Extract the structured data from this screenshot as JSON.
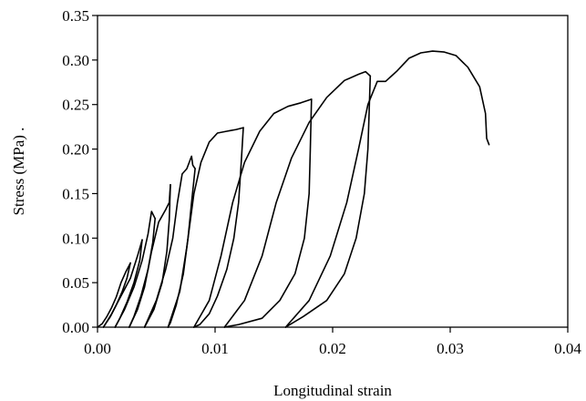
{
  "chart_data": {
    "type": "line",
    "title": "",
    "xlabel": "Longitudinal strain",
    "ylabel": "Stress (MPa) .",
    "xlim": [
      0,
      0.04
    ],
    "ylim": [
      0,
      0.35
    ],
    "x_ticks": [
      0,
      0.01,
      0.02,
      0.03,
      0.04
    ],
    "x_tick_labels": [
      "0.00",
      "0.01",
      "0.02",
      "0.03",
      "0.04"
    ],
    "y_ticks": [
      0,
      0.05,
      0.1,
      0.15,
      0.2,
      0.25,
      0.3,
      0.35
    ],
    "y_tick_labels": [
      "0.00",
      "0.05",
      "0.10",
      "0.15",
      "0.20",
      "0.25",
      "0.30",
      "0.35"
    ],
    "grid": false,
    "legend": "none",
    "line_color": "#000000",
    "series": [
      {
        "points": [
          [
            0.0,
            0.0
          ],
          [
            0.0004,
            0.004
          ],
          [
            0.0008,
            0.012
          ],
          [
            0.0012,
            0.022
          ],
          [
            0.0016,
            0.034
          ],
          [
            0.002,
            0.05
          ],
          [
            0.0024,
            0.062
          ],
          [
            0.0028,
            0.072
          ]
        ]
      },
      {
        "points": [
          [
            0.0028,
            0.072
          ],
          [
            0.0025,
            0.055
          ],
          [
            0.0021,
            0.04
          ],
          [
            0.0016,
            0.025
          ],
          [
            0.0011,
            0.012
          ],
          [
            0.0007,
            0.004
          ],
          [
            0.0005,
            0.0
          ]
        ]
      },
      {
        "points": [
          [
            0.0005,
            0.0
          ],
          [
            0.0012,
            0.015
          ],
          [
            0.002,
            0.035
          ],
          [
            0.0028,
            0.055
          ],
          [
            0.0034,
            0.08
          ],
          [
            0.0038,
            0.098
          ]
        ]
      },
      {
        "points": [
          [
            0.0038,
            0.098
          ],
          [
            0.0036,
            0.075
          ],
          [
            0.0031,
            0.05
          ],
          [
            0.0025,
            0.028
          ],
          [
            0.0019,
            0.01
          ],
          [
            0.0015,
            0.0
          ]
        ]
      },
      {
        "points": [
          [
            0.0015,
            0.0
          ],
          [
            0.0023,
            0.02
          ],
          [
            0.0031,
            0.045
          ],
          [
            0.0038,
            0.075
          ],
          [
            0.0043,
            0.105
          ],
          [
            0.0046,
            0.13
          ],
          [
            0.0049,
            0.122
          ]
        ]
      },
      {
        "points": [
          [
            0.0049,
            0.122
          ],
          [
            0.0047,
            0.095
          ],
          [
            0.0043,
            0.065
          ],
          [
            0.0037,
            0.035
          ],
          [
            0.0031,
            0.012
          ],
          [
            0.0027,
            0.0
          ]
        ]
      },
      {
        "points": [
          [
            0.0027,
            0.0
          ],
          [
            0.0034,
            0.02
          ],
          [
            0.004,
            0.045
          ],
          [
            0.0046,
            0.085
          ],
          [
            0.0052,
            0.118
          ],
          [
            0.0058,
            0.132
          ],
          [
            0.0061,
            0.14
          ],
          [
            0.0062,
            0.16
          ]
        ]
      },
      {
        "points": [
          [
            0.0062,
            0.16
          ],
          [
            0.0061,
            0.12
          ],
          [
            0.0059,
            0.085
          ],
          [
            0.0055,
            0.05
          ],
          [
            0.0048,
            0.02
          ],
          [
            0.0042,
            0.005
          ],
          [
            0.004,
            0.0
          ]
        ]
      },
      {
        "points": [
          [
            0.004,
            0.0
          ],
          [
            0.005,
            0.03
          ],
          [
            0.0058,
            0.065
          ],
          [
            0.0064,
            0.1
          ],
          [
            0.0068,
            0.14
          ],
          [
            0.0072,
            0.172
          ],
          [
            0.0076,
            0.178
          ],
          [
            0.008,
            0.192
          ],
          [
            0.0081,
            0.182
          ],
          [
            0.0083,
            0.178
          ]
        ]
      },
      {
        "points": [
          [
            0.0083,
            0.178
          ],
          [
            0.008,
            0.14
          ],
          [
            0.0077,
            0.1
          ],
          [
            0.0073,
            0.06
          ],
          [
            0.0067,
            0.025
          ],
          [
            0.0062,
            0.005
          ],
          [
            0.006,
            0.0
          ]
        ]
      },
      {
        "points": [
          [
            0.006,
            0.0
          ],
          [
            0.007,
            0.04
          ],
          [
            0.0076,
            0.09
          ],
          [
            0.0082,
            0.15
          ],
          [
            0.0088,
            0.185
          ],
          [
            0.0095,
            0.208
          ],
          [
            0.0102,
            0.218
          ],
          [
            0.011,
            0.22
          ],
          [
            0.0118,
            0.222
          ],
          [
            0.0124,
            0.224
          ]
        ]
      },
      {
        "points": [
          [
            0.0124,
            0.224
          ],
          [
            0.0122,
            0.18
          ],
          [
            0.012,
            0.14
          ],
          [
            0.0116,
            0.1
          ],
          [
            0.011,
            0.065
          ],
          [
            0.0102,
            0.035
          ],
          [
            0.0095,
            0.015
          ],
          [
            0.0087,
            0.003
          ],
          [
            0.0082,
            0.0
          ]
        ]
      },
      {
        "points": [
          [
            0.0082,
            0.0
          ],
          [
            0.0095,
            0.03
          ],
          [
            0.0105,
            0.08
          ],
          [
            0.0115,
            0.14
          ],
          [
            0.0125,
            0.185
          ],
          [
            0.0138,
            0.22
          ],
          [
            0.015,
            0.24
          ],
          [
            0.0162,
            0.248
          ],
          [
            0.0173,
            0.252
          ],
          [
            0.0182,
            0.256
          ]
        ]
      },
      {
        "points": [
          [
            0.0182,
            0.256
          ],
          [
            0.0181,
            0.2
          ],
          [
            0.018,
            0.15
          ],
          [
            0.0176,
            0.1
          ],
          [
            0.0168,
            0.06
          ],
          [
            0.0155,
            0.03
          ],
          [
            0.014,
            0.01
          ],
          [
            0.012,
            0.003
          ],
          [
            0.0108,
            0.0
          ]
        ]
      },
      {
        "points": [
          [
            0.0108,
            0.0
          ],
          [
            0.0125,
            0.03
          ],
          [
            0.014,
            0.08
          ],
          [
            0.0152,
            0.14
          ],
          [
            0.0165,
            0.19
          ],
          [
            0.018,
            0.23
          ],
          [
            0.0195,
            0.258
          ],
          [
            0.021,
            0.277
          ],
          [
            0.0222,
            0.284
          ],
          [
            0.0228,
            0.287
          ],
          [
            0.0232,
            0.282
          ]
        ]
      },
      {
        "points": [
          [
            0.0232,
            0.282
          ],
          [
            0.0231,
            0.24
          ],
          [
            0.023,
            0.2
          ],
          [
            0.0227,
            0.15
          ],
          [
            0.022,
            0.1
          ],
          [
            0.021,
            0.06
          ],
          [
            0.0195,
            0.03
          ],
          [
            0.0175,
            0.012
          ],
          [
            0.016,
            0.0
          ]
        ]
      },
      {
        "points": [
          [
            0.016,
            0.0
          ],
          [
            0.018,
            0.03
          ],
          [
            0.0198,
            0.08
          ],
          [
            0.0212,
            0.14
          ],
          [
            0.0222,
            0.2
          ],
          [
            0.023,
            0.25
          ],
          [
            0.0238,
            0.276
          ],
          [
            0.0245,
            0.276
          ],
          [
            0.0255,
            0.288
          ],
          [
            0.0265,
            0.302
          ],
          [
            0.0275,
            0.308
          ],
          [
            0.0285,
            0.31
          ],
          [
            0.0295,
            0.309
          ],
          [
            0.0305,
            0.305
          ],
          [
            0.0315,
            0.292
          ],
          [
            0.0325,
            0.27
          ],
          [
            0.033,
            0.24
          ],
          [
            0.0331,
            0.212
          ],
          [
            0.0333,
            0.205
          ]
        ]
      }
    ]
  }
}
